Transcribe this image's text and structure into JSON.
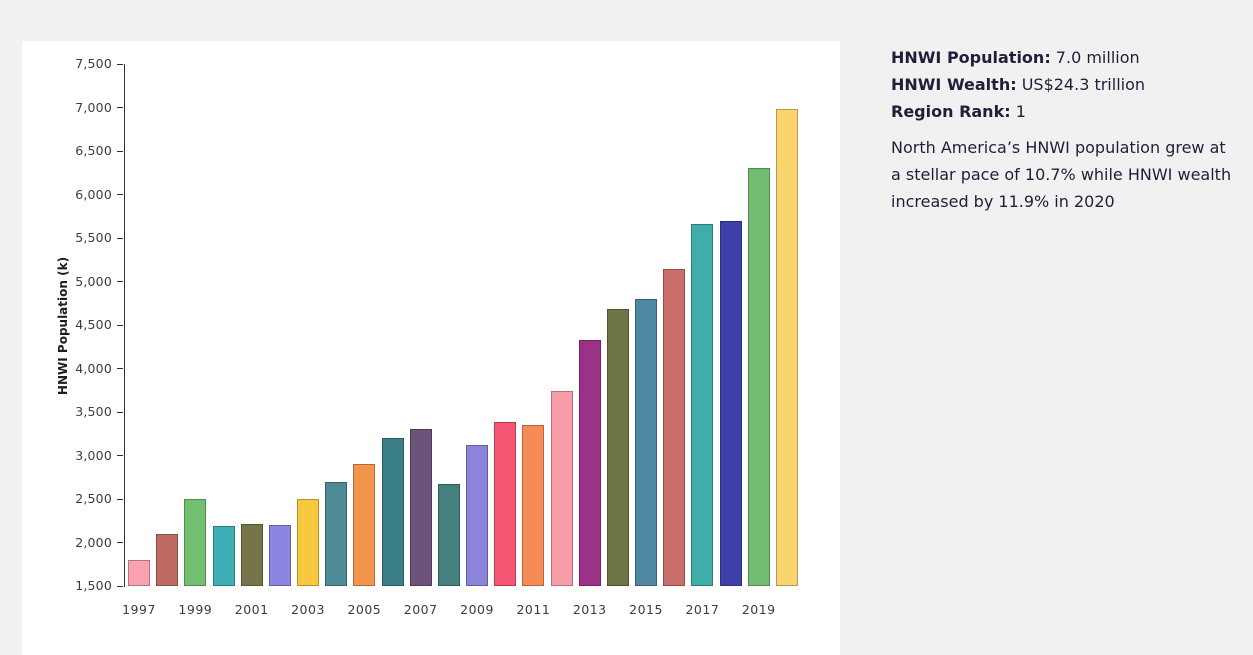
{
  "window": {
    "background_color": "#f1f1f1",
    "card_background_color": "#ffffff"
  },
  "chart_data": {
    "type": "bar",
    "title": "",
    "xlabel": "",
    "ylabel": "HNWI Population (k)",
    "ylim": [
      1500,
      7500
    ],
    "ytick_interval": 500,
    "ytick_labels": [
      "1,500",
      "2,000",
      "2,500",
      "3,000",
      "3,500",
      "4,000",
      "4,500",
      "5,000",
      "5,500",
      "6,000",
      "6,500",
      "7,000",
      "7,500"
    ],
    "grid": false,
    "legend": false,
    "categories": [
      1997,
      1998,
      1999,
      2000,
      2001,
      2002,
      2003,
      2004,
      2005,
      2006,
      2007,
      2008,
      2009,
      2010,
      2011,
      2012,
      2013,
      2014,
      2015,
      2016,
      2017,
      2018,
      2019,
      2020
    ],
    "xtick_labels": [
      "1997",
      "1999",
      "2001",
      "2003",
      "2005",
      "2007",
      "2009",
      "2011",
      "2013",
      "2015",
      "2017",
      "2019"
    ],
    "series": [
      {
        "name": "HNWI Population (k)",
        "values": [
          1800,
          2100,
          2500,
          2190,
          2210,
          2200,
          2500,
          2700,
          2900,
          3200,
          3300,
          2670,
          3120,
          3390,
          3350,
          3740,
          4330,
          4680,
          4800,
          5150,
          5660,
          5700,
          6300,
          6980
        ]
      }
    ],
    "bar_colors": [
      "#F9A1AE",
      "#BE6B64",
      "#72C06F",
      "#3DADB4",
      "#757549",
      "#8B86E0",
      "#F8C93E",
      "#4D8A94",
      "#F0954B",
      "#3A7F88",
      "#6D537A",
      "#44807E",
      "#8A84DB",
      "#F45571",
      "#F68B56",
      "#F89CA7",
      "#9C3287",
      "#6D7547",
      "#4F88A2",
      "#CA6E69",
      "#41ADA9",
      "#3F3FAA",
      "#72BD71",
      "#FAD36E"
    ]
  },
  "info_panel": {
    "text_color": "#251c38",
    "stats": [
      {
        "label": "HNWI Population:",
        "value": "7.0 million"
      },
      {
        "label": "HNWI Wealth:",
        "value": "US$24.3 trillion"
      },
      {
        "label": "Region Rank:",
        "value": "1"
      }
    ],
    "description_lines": [
      "North America’s HNWI population grew at",
      "a stellar pace of 10.7% while HNWI wealth",
      "increased by 11.9% in 2020"
    ]
  }
}
